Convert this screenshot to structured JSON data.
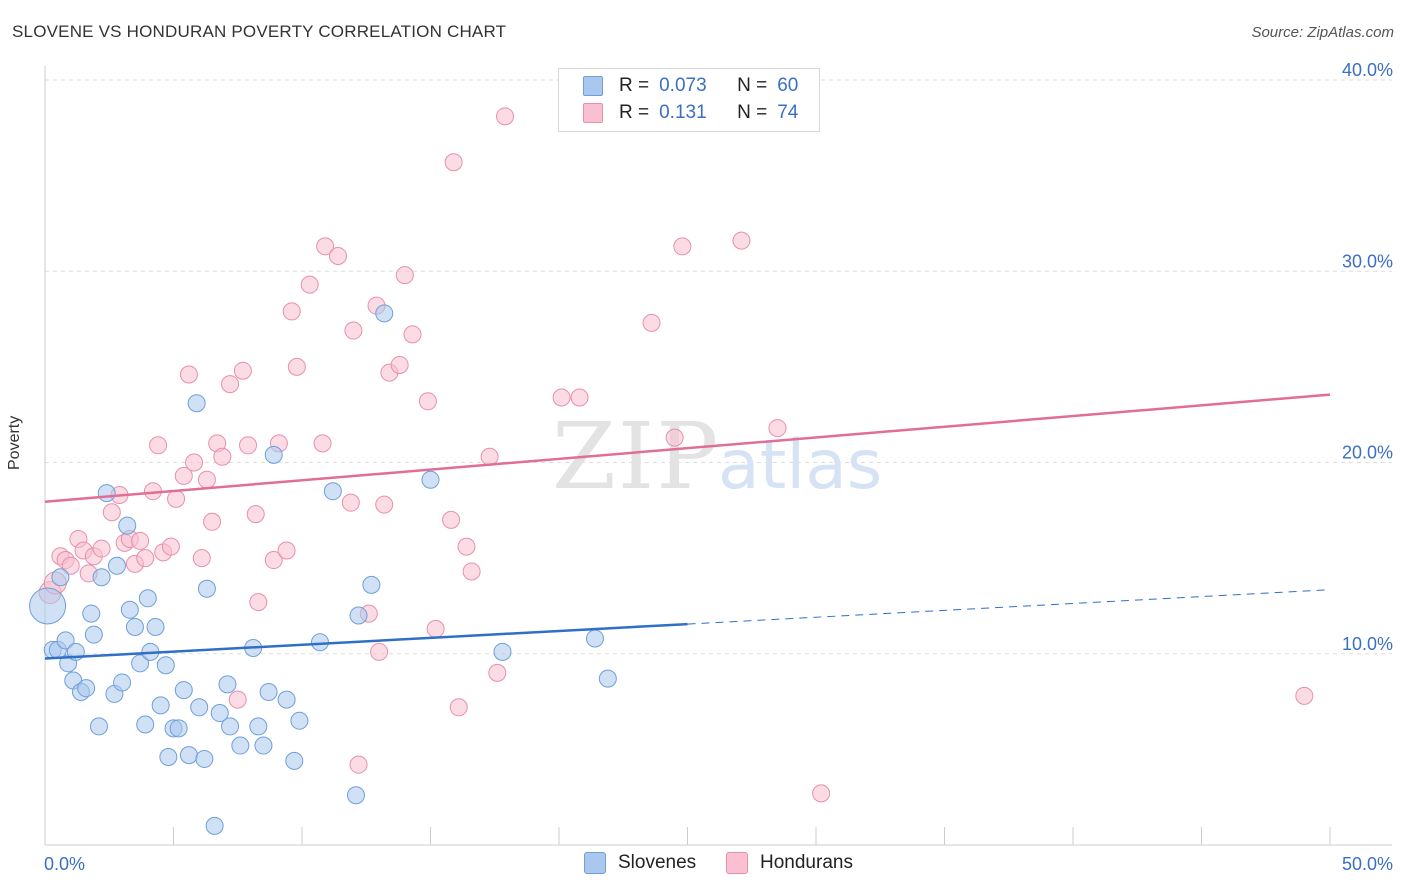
{
  "title": "SLOVENE VS HONDURAN POVERTY CORRELATION CHART",
  "source": "Source: ZipAtlas.com",
  "watermark": {
    "zip": "ZIP",
    "atlas": "atlas"
  },
  "colors": {
    "blue_fill": "#aac8ee",
    "blue_stroke": "#6f9fd8",
    "blue_line": "#2f6fc8",
    "pink_fill": "#f8c0d0",
    "pink_stroke": "#e890ab",
    "pink_line": "#e06e95",
    "tick_text": "#3a6fc4",
    "grid": "#dddddd"
  },
  "legend": {
    "rows": [
      {
        "r_label": "R =",
        "r_value": "0.073",
        "n_label": "N =",
        "n_value": "60"
      },
      {
        "r_label": "R =",
        "r_value": "0.131",
        "n_label": "N =",
        "n_value": "74"
      }
    ]
  },
  "bottom_legend": {
    "series1": "Slovenes",
    "series2": "Hondurans"
  },
  "chart_data": {
    "type": "scatter",
    "ylabel": "Poverty",
    "xlim": [
      0,
      50
    ],
    "ylim": [
      0,
      40
    ],
    "x_tick_labels": [
      "0.0%",
      "50.0%"
    ],
    "y_ticks": [
      {
        "value": 10,
        "label": "10.0%"
      },
      {
        "value": 20,
        "label": "20.0%"
      },
      {
        "value": 30,
        "label": "30.0%"
      },
      {
        "value": 40,
        "label": "40.0%"
      }
    ],
    "grid": true,
    "series": [
      {
        "name": "Slovenes",
        "trend": {
          "x0": 0,
          "y0": 9.75,
          "x1": 25,
          "y1": 11.55,
          "dashed_to": 50,
          "dashed_y": 13.35
        },
        "points": [
          [
            0.1,
            12.5
          ],
          [
            0.3,
            10.2
          ],
          [
            0.5,
            10.2
          ],
          [
            0.6,
            14.0
          ],
          [
            0.8,
            10.7
          ],
          [
            0.9,
            9.5
          ],
          [
            1.1,
            8.6
          ],
          [
            1.2,
            10.1
          ],
          [
            1.4,
            8.0
          ],
          [
            1.6,
            8.2
          ],
          [
            1.8,
            12.1
          ],
          [
            1.9,
            11.0
          ],
          [
            2.1,
            6.2
          ],
          [
            2.2,
            14.0
          ],
          [
            2.4,
            18.4
          ],
          [
            2.7,
            7.9
          ],
          [
            2.8,
            14.6
          ],
          [
            3.0,
            8.5
          ],
          [
            3.2,
            16.7
          ],
          [
            3.3,
            12.3
          ],
          [
            3.5,
            11.4
          ],
          [
            3.7,
            9.5
          ],
          [
            3.9,
            6.3
          ],
          [
            4.0,
            12.9
          ],
          [
            4.1,
            10.1
          ],
          [
            4.3,
            11.4
          ],
          [
            4.5,
            7.3
          ],
          [
            4.7,
            9.4
          ],
          [
            4.8,
            4.6
          ],
          [
            5.0,
            6.1
          ],
          [
            5.2,
            6.1
          ],
          [
            5.4,
            8.1
          ],
          [
            5.6,
            4.7
          ],
          [
            5.9,
            23.1
          ],
          [
            6.0,
            7.2
          ],
          [
            6.2,
            4.5
          ],
          [
            6.3,
            13.4
          ],
          [
            6.6,
            1.0
          ],
          [
            6.8,
            6.9
          ],
          [
            7.1,
            8.4
          ],
          [
            7.2,
            6.2
          ],
          [
            7.6,
            5.2
          ],
          [
            8.1,
            10.3
          ],
          [
            8.3,
            6.2
          ],
          [
            8.5,
            5.2
          ],
          [
            8.7,
            8.0
          ],
          [
            8.9,
            20.4
          ],
          [
            9.4,
            7.6
          ],
          [
            9.7,
            4.4
          ],
          [
            9.9,
            6.5
          ],
          [
            10.7,
            10.6
          ],
          [
            11.2,
            18.5
          ],
          [
            12.1,
            2.6
          ],
          [
            12.2,
            12.0
          ],
          [
            12.7,
            13.6
          ],
          [
            13.2,
            27.8
          ],
          [
            15.0,
            19.1
          ],
          [
            17.8,
            10.1
          ],
          [
            21.4,
            10.8
          ],
          [
            21.9,
            8.7
          ]
        ]
      },
      {
        "name": "Hondurans",
        "trend": {
          "x0": 0,
          "y0": 17.95,
          "x1": 50,
          "y1": 23.55
        },
        "points": [
          [
            0.2,
            13.2
          ],
          [
            0.4,
            13.7
          ],
          [
            0.6,
            15.1
          ],
          [
            0.8,
            14.9
          ],
          [
            1.0,
            14.6
          ],
          [
            1.3,
            16.0
          ],
          [
            1.5,
            15.4
          ],
          [
            1.7,
            14.2
          ],
          [
            1.9,
            15.1
          ],
          [
            2.2,
            15.5
          ],
          [
            2.6,
            17.4
          ],
          [
            2.9,
            18.3
          ],
          [
            3.1,
            15.8
          ],
          [
            3.3,
            16.0
          ],
          [
            3.5,
            14.7
          ],
          [
            3.7,
            15.9
          ],
          [
            3.9,
            15.0
          ],
          [
            4.2,
            18.5
          ],
          [
            4.4,
            20.9
          ],
          [
            4.6,
            15.3
          ],
          [
            4.9,
            15.6
          ],
          [
            5.1,
            18.1
          ],
          [
            5.4,
            19.3
          ],
          [
            5.6,
            24.6
          ],
          [
            5.8,
            20.0
          ],
          [
            6.1,
            15.0
          ],
          [
            6.3,
            19.1
          ],
          [
            6.5,
            16.9
          ],
          [
            6.7,
            21.0
          ],
          [
            6.9,
            20.3
          ],
          [
            7.2,
            24.1
          ],
          [
            7.5,
            7.6
          ],
          [
            7.7,
            24.8
          ],
          [
            7.9,
            20.9
          ],
          [
            8.2,
            17.3
          ],
          [
            8.3,
            12.7
          ],
          [
            8.9,
            14.9
          ],
          [
            9.1,
            21.0
          ],
          [
            9.4,
            15.4
          ],
          [
            9.6,
            27.9
          ],
          [
            9.8,
            25.0
          ],
          [
            10.3,
            29.3
          ],
          [
            10.8,
            21.0
          ],
          [
            10.9,
            31.3
          ],
          [
            11.4,
            30.8
          ],
          [
            11.9,
            17.9
          ],
          [
            12.0,
            26.9
          ],
          [
            12.2,
            4.2
          ],
          [
            12.6,
            12.1
          ],
          [
            12.9,
            28.2
          ],
          [
            13.0,
            10.1
          ],
          [
            13.2,
            17.8
          ],
          [
            13.4,
            24.7
          ],
          [
            13.8,
            25.1
          ],
          [
            14.0,
            29.8
          ],
          [
            14.3,
            26.7
          ],
          [
            14.9,
            23.2
          ],
          [
            15.2,
            11.3
          ],
          [
            15.8,
            17.0
          ],
          [
            15.9,
            35.7
          ],
          [
            16.1,
            7.2
          ],
          [
            16.4,
            15.6
          ],
          [
            16.6,
            14.3
          ],
          [
            17.3,
            20.3
          ],
          [
            17.6,
            9.0
          ],
          [
            17.9,
            38.1
          ],
          [
            20.1,
            23.4
          ],
          [
            20.8,
            23.4
          ],
          [
            23.6,
            27.3
          ],
          [
            24.5,
            21.3
          ],
          [
            24.8,
            31.3
          ],
          [
            27.1,
            31.6
          ],
          [
            28.5,
            21.8
          ],
          [
            30.2,
            2.7
          ],
          [
            49.0,
            7.8
          ]
        ]
      }
    ]
  }
}
